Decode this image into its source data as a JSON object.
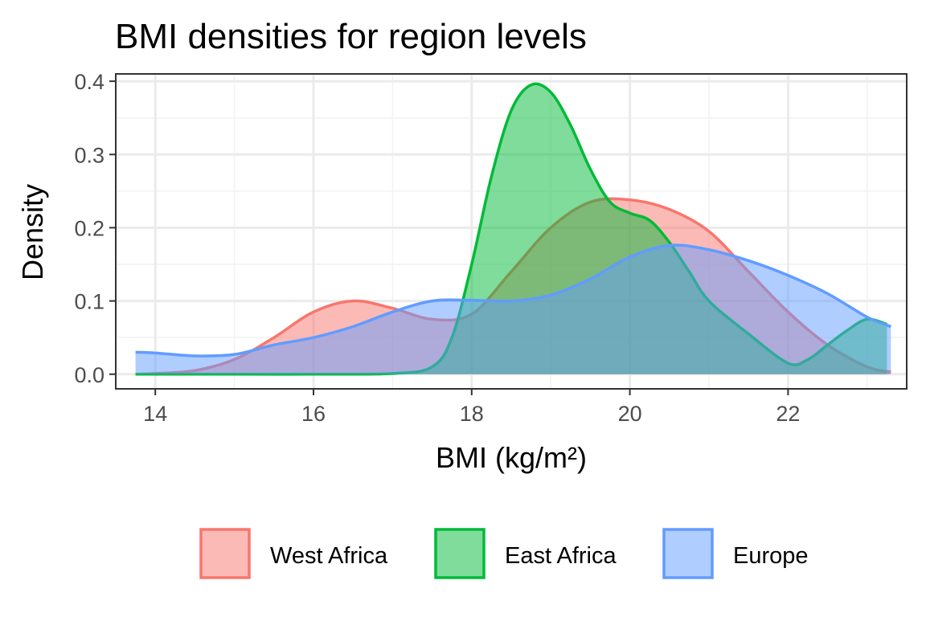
{
  "chart_data": {
    "type": "area",
    "title": "BMI densities for region levels",
    "xlabel": "BMI (kg/m²)",
    "ylabel": "Density",
    "xlim": [
      13.5,
      23.5
    ],
    "ylim": [
      -0.02,
      0.41
    ],
    "x_ticks": [
      14,
      16,
      18,
      20,
      22
    ],
    "y_ticks": [
      0.0,
      0.1,
      0.2,
      0.3,
      0.4
    ],
    "y_tick_labels": [
      "0.0",
      "0.1",
      "0.2",
      "0.3",
      "0.4"
    ],
    "grid": true,
    "legend_position": "bottom",
    "fill_alpha": 0.5,
    "series": [
      {
        "name": "West Africa",
        "color": "#F8766D",
        "points": [
          [
            13.75,
            0.0
          ],
          [
            14.0,
            0.001
          ],
          [
            14.5,
            0.005
          ],
          [
            15.0,
            0.02
          ],
          [
            15.5,
            0.05
          ],
          [
            16.0,
            0.085
          ],
          [
            16.5,
            0.1
          ],
          [
            17.0,
            0.09
          ],
          [
            17.5,
            0.075
          ],
          [
            18.0,
            0.082
          ],
          [
            18.5,
            0.14
          ],
          [
            19.0,
            0.2
          ],
          [
            19.5,
            0.235
          ],
          [
            20.0,
            0.238
          ],
          [
            20.5,
            0.225
          ],
          [
            21.0,
            0.195
          ],
          [
            21.5,
            0.14
          ],
          [
            22.0,
            0.085
          ],
          [
            22.5,
            0.04
          ],
          [
            23.0,
            0.01
          ],
          [
            23.3,
            0.003
          ]
        ]
      },
      {
        "name": "East Africa",
        "color": "#00BA38",
        "points": [
          [
            13.75,
            0.0
          ],
          [
            15.0,
            0.0
          ],
          [
            16.0,
            0.0
          ],
          [
            17.0,
            0.001
          ],
          [
            17.5,
            0.01
          ],
          [
            17.75,
            0.05
          ],
          [
            18.0,
            0.15
          ],
          [
            18.25,
            0.27
          ],
          [
            18.5,
            0.36
          ],
          [
            18.75,
            0.395
          ],
          [
            19.0,
            0.385
          ],
          [
            19.25,
            0.34
          ],
          [
            19.5,
            0.28
          ],
          [
            19.75,
            0.235
          ],
          [
            20.0,
            0.22
          ],
          [
            20.25,
            0.21
          ],
          [
            20.5,
            0.18
          ],
          [
            20.75,
            0.14
          ],
          [
            21.0,
            0.1
          ],
          [
            21.5,
            0.055
          ],
          [
            22.0,
            0.015
          ],
          [
            22.25,
            0.02
          ],
          [
            22.5,
            0.04
          ],
          [
            22.75,
            0.06
          ],
          [
            23.0,
            0.075
          ],
          [
            23.25,
            0.068
          ]
        ]
      },
      {
        "name": "Europe",
        "color": "#619CFF",
        "points": [
          [
            13.75,
            0.03
          ],
          [
            14.0,
            0.029
          ],
          [
            14.5,
            0.025
          ],
          [
            15.0,
            0.027
          ],
          [
            15.5,
            0.04
          ],
          [
            16.0,
            0.05
          ],
          [
            16.5,
            0.065
          ],
          [
            17.0,
            0.085
          ],
          [
            17.5,
            0.1
          ],
          [
            18.0,
            0.101
          ],
          [
            18.5,
            0.1
          ],
          [
            19.0,
            0.108
          ],
          [
            19.5,
            0.13
          ],
          [
            20.0,
            0.16
          ],
          [
            20.5,
            0.176
          ],
          [
            21.0,
            0.17
          ],
          [
            21.5,
            0.155
          ],
          [
            22.0,
            0.135
          ],
          [
            22.5,
            0.11
          ],
          [
            23.0,
            0.078
          ],
          [
            23.3,
            0.065
          ]
        ]
      }
    ]
  }
}
